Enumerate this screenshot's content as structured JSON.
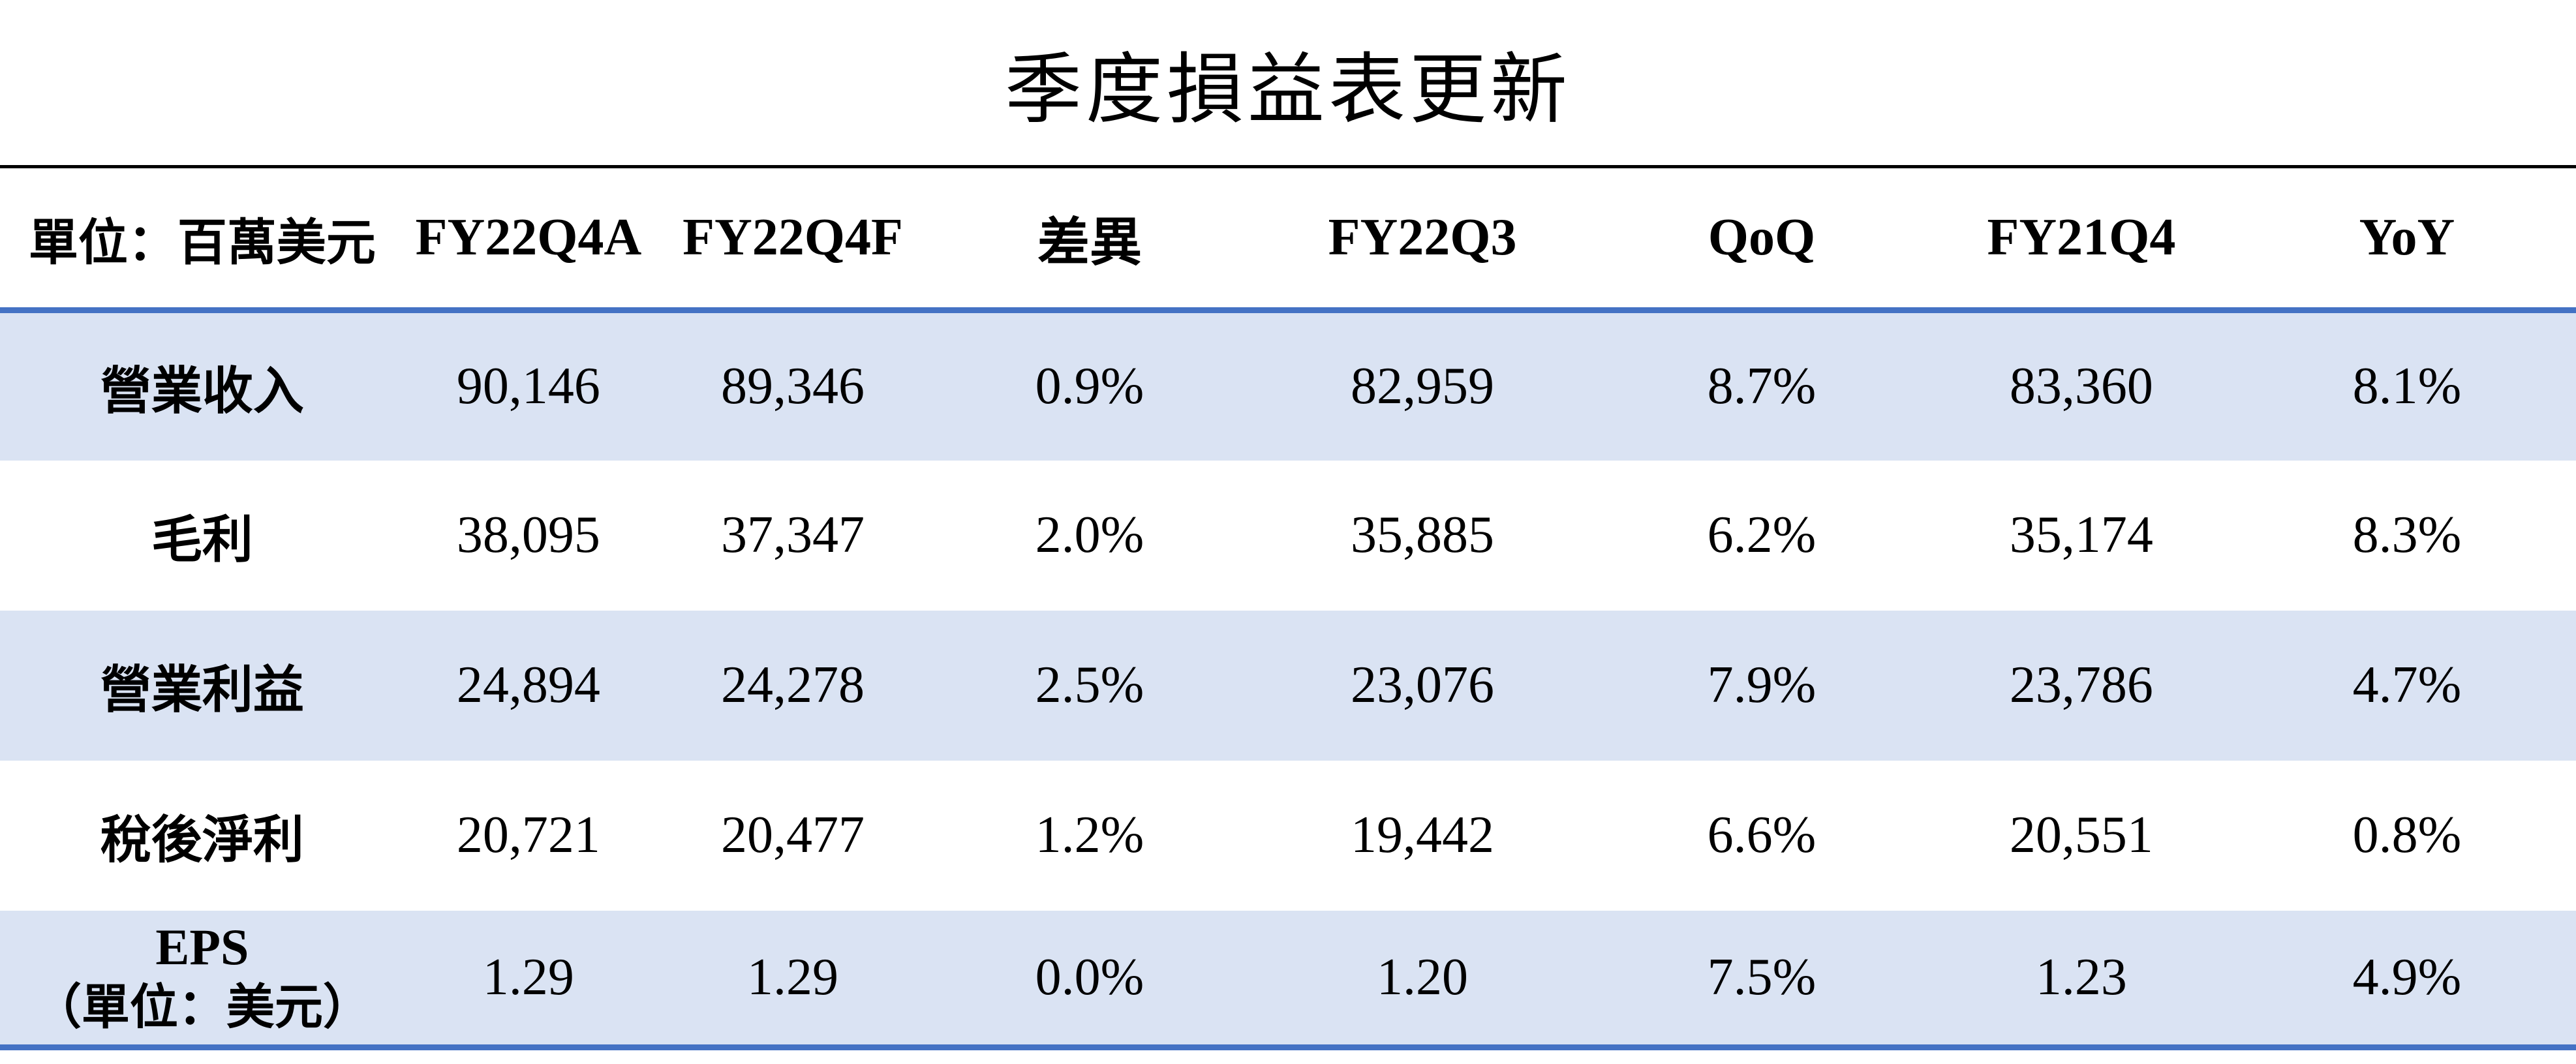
{
  "title": "季度損益表更新",
  "table": {
    "columns": [
      "單位：百萬美元",
      "FY22Q4A",
      "FY22Q4F",
      "差異",
      "FY22Q3",
      "QoQ",
      "FY21Q4",
      "YoY"
    ],
    "rows": [
      {
        "label": "營業收入",
        "values": [
          "90,146",
          "89,346",
          "0.9%",
          "82,959",
          "8.7%",
          "83,360",
          "8.1%"
        ]
      },
      {
        "label": "毛利",
        "values": [
          "38,095",
          "37,347",
          "2.0%",
          "35,885",
          "6.2%",
          "35,174",
          "8.3%"
        ]
      },
      {
        "label": "營業利益",
        "values": [
          "24,894",
          "24,278",
          "2.5%",
          "23,076",
          "7.9%",
          "23,786",
          "4.7%"
        ]
      },
      {
        "label": "稅後淨利",
        "values": [
          "20,721",
          "20,477",
          "1.2%",
          "19,442",
          "6.6%",
          "20,551",
          "0.8%"
        ]
      },
      {
        "label": "EPS",
        "label_line2": "（單位：美元）",
        "values": [
          "1.29",
          "1.29",
          "0.0%",
          "1.20",
          "7.5%",
          "1.23",
          "4.9%"
        ]
      }
    ]
  },
  "colors": {
    "band": "#DAE3F3",
    "accent": "#4472C4",
    "title_rule": "#000000",
    "text": "#000000"
  }
}
